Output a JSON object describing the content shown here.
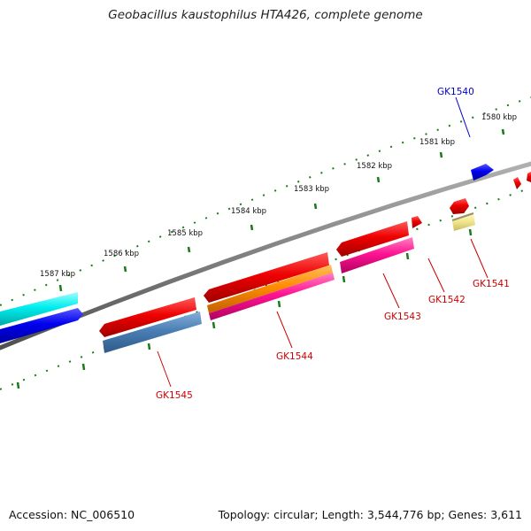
{
  "title": "Geobacillus kaustophilus HTA426, complete genome",
  "footer": {
    "accession": "Accession: NC_006510",
    "summary": "Topology: circular; Length: 3,544,776 bp; Genes: 3,611"
  },
  "kbp_labels": [
    "1580 kbp",
    "1581 kbp",
    "1582 kbp",
    "1583 kbp",
    "1584 kbp",
    "1585 kbp",
    "1586 kbp",
    "1587 kbp"
  ],
  "genes": [
    {
      "id": "GK1540",
      "color": "#0000cc"
    },
    {
      "id": "GK1541",
      "color": "#cc0000"
    },
    {
      "id": "GK1542",
      "color": "#cc0000"
    },
    {
      "id": "GK1543",
      "color": "#cc0000"
    },
    {
      "id": "GK1544",
      "color": "#cc0000"
    },
    {
      "id": "GK1545",
      "color": "#cc0000"
    }
  ],
  "colors": {
    "backbone": "#808080",
    "ticks": "#1a7a1a",
    "red": "#ee0000",
    "blue": "#0000ee",
    "cyan": "#00e5ee",
    "steelblue": "#4a7fb5",
    "orange": "#ff8c00",
    "pink": "#ff1493",
    "khaki": "#f0e68c"
  }
}
